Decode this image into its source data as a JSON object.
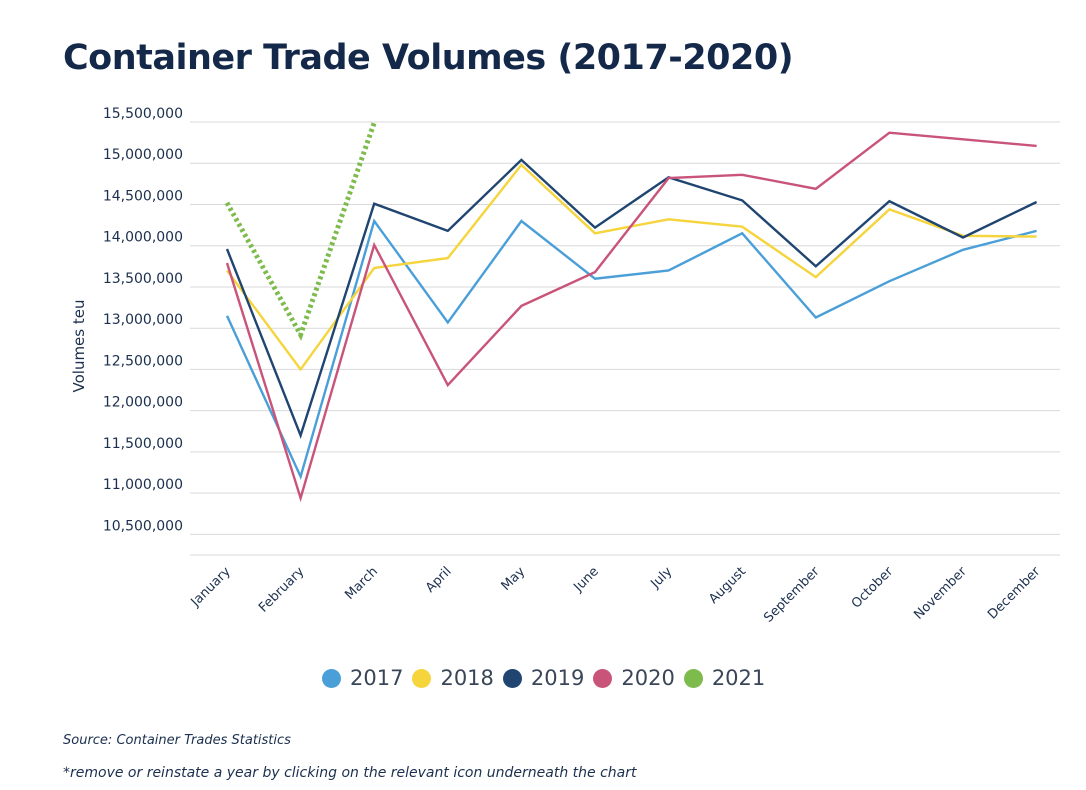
{
  "colors": {
    "2017": "#4a9fd8",
    "2018": "#f5d43c",
    "2019": "#1f4570",
    "2020": "#c95479",
    "2021": "#7dbb4d",
    "grid": "#d9d9d9",
    "text": "#1b2f4e"
  },
  "chart_data": {
    "type": "line",
    "title": "Container Trade Volumes (2017-2020)",
    "ylabel": "Volumes teu",
    "xlabel": "",
    "ylim": [
      10250000,
      15500000
    ],
    "grid": true,
    "legend_position": "bottom",
    "categories": [
      "January",
      "February",
      "March",
      "April",
      "May",
      "June",
      "July",
      "August",
      "September",
      "October",
      "November",
      "December"
    ],
    "y_ticks": [
      10500000,
      11000000,
      11500000,
      12000000,
      12500000,
      13000000,
      13500000,
      14000000,
      14500000,
      15000000,
      15500000
    ],
    "y_tick_labels": [
      "10,500,000",
      "11,000,000",
      "11,500,000",
      "12,000,000",
      "12,500,000",
      "13,000,000",
      "13,500,000",
      "14,000,000",
      "14,500,000",
      "15,000,000",
      "15,500,000"
    ],
    "series": [
      {
        "name": "2017",
        "values": [
          13150000,
          11200000,
          14300000,
          13070000,
          14300000,
          13600000,
          13700000,
          14150000,
          13130000,
          13570000,
          13950000,
          14180000
        ]
      },
      {
        "name": "2018",
        "values": [
          13700000,
          12500000,
          13730000,
          13850000,
          14980000,
          14150000,
          14320000,
          14230000,
          13620000,
          14440000,
          14120000,
          14110000
        ]
      },
      {
        "name": "2019",
        "values": [
          13960000,
          11700000,
          14510000,
          14180000,
          15040000,
          14220000,
          14830000,
          14550000,
          13750000,
          14540000,
          14100000,
          14530000
        ]
      },
      {
        "name": "2020",
        "values": [
          13790000,
          10940000,
          14010000,
          12310000,
          13270000,
          13680000,
          14820000,
          14860000,
          14690000,
          15370000,
          15290000,
          15210000
        ]
      },
      {
        "name": "2021",
        "values": [
          14520000,
          12920000,
          15490000,
          null,
          null,
          null,
          null,
          null,
          null,
          null,
          null,
          null
        ],
        "style": "dotted"
      }
    ]
  },
  "legend": {
    "items": [
      {
        "label": "2017",
        "color": "#4a9fd8"
      },
      {
        "label": "2018",
        "color": "#f5d43c"
      },
      {
        "label": "2019",
        "color": "#1f4570"
      },
      {
        "label": "2020",
        "color": "#c95479"
      },
      {
        "label": "2021",
        "color": "#7dbb4d"
      }
    ]
  },
  "footer": {
    "source": "Source: Container Trades Statistics",
    "note": "*remove or reinstate a year by clicking on the relevant icon underneath the chart"
  }
}
